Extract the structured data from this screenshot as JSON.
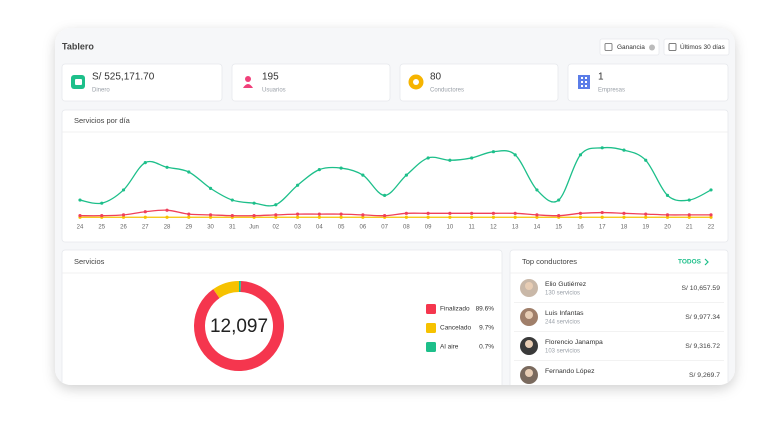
{
  "header": {
    "title": "Tablero",
    "earnings_toggle": "Ganancia",
    "date_range": "Últimos 30 días"
  },
  "kpis": [
    {
      "value": "S/ 525,171.70",
      "label": "Dinero"
    },
    {
      "value": "195",
      "label": "Usuarios"
    },
    {
      "value": "80",
      "label": "Conductores"
    },
    {
      "value": "1",
      "label": "Empresas"
    }
  ],
  "chart_data": [
    {
      "type": "line",
      "title": "Servicios por día",
      "categories": [
        "24",
        "25",
        "26",
        "27",
        "28",
        "29",
        "30",
        "31",
        "Jun",
        "02",
        "03",
        "04",
        "05",
        "06",
        "07",
        "08",
        "09",
        "10",
        "11",
        "12",
        "13",
        "14",
        "15",
        "16",
        "17",
        "18",
        "19",
        "20",
        "21",
        "22"
      ],
      "ylim": [
        0,
        100
      ],
      "series": [
        {
          "color": "#1dbf8a",
          "values": [
            23,
            19,
            36,
            71,
            65,
            59,
            38,
            23,
            19,
            17,
            42,
            62,
            64,
            55,
            29,
            55,
            77,
            74,
            77,
            85,
            81,
            36,
            23,
            81,
            90,
            87,
            74,
            29,
            23,
            36
          ]
        },
        {
          "color": "#f0405a",
          "values": [
            3,
            3,
            4,
            8,
            10,
            5,
            4,
            3,
            3,
            4,
            5,
            5,
            5,
            4,
            3,
            6,
            6,
            6,
            6,
            6,
            6,
            4,
            3,
            6,
            7,
            6,
            5,
            4,
            4,
            4
          ]
        },
        {
          "color": "#f6c200",
          "values": [
            1,
            1,
            1,
            1,
            1,
            1,
            1,
            1,
            1,
            1,
            1,
            1,
            1,
            1,
            1,
            1,
            1,
            1,
            1,
            1,
            1,
            1,
            1,
            1,
            1,
            1,
            1,
            1,
            1,
            1
          ]
        }
      ]
    },
    {
      "type": "pie",
      "title": "Servicios",
      "center_label": "12,097",
      "categories": [
        "Finalizado",
        "Cancelado",
        "Al aire"
      ],
      "values": [
        89.6,
        9.7,
        0.7
      ],
      "value_labels": [
        "89.6%",
        "9.7%",
        "0.7%"
      ],
      "colors": [
        "#f5364e",
        "#f6c200",
        "#1dbf8a"
      ]
    }
  ],
  "top_drivers": {
    "title": "Top conductores",
    "link": "TODOS",
    "rows": [
      {
        "name": "Elio Gutiérrez",
        "services": "130 servicios",
        "amount": "S/ 10,657.59"
      },
      {
        "name": "Luis Infantas",
        "services": "244 servicios",
        "amount": "S/ 9,977.34"
      },
      {
        "name": "Florencio Janampa",
        "services": "103 servicios",
        "amount": "S/ 9,316.72"
      },
      {
        "name": "Fernando López",
        "services": "",
        "amount": "S/ 9,269.7"
      }
    ]
  }
}
